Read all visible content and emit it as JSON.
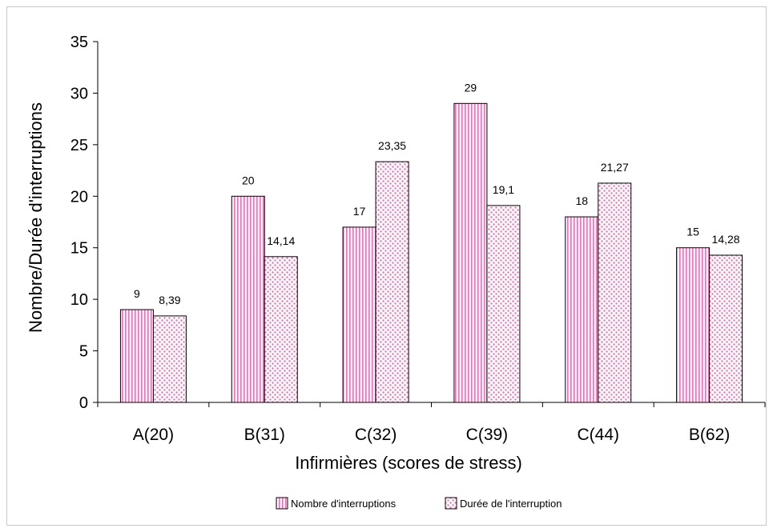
{
  "chart_data": {
    "type": "bar",
    "xlabel": "Infirmières (scores de stress)",
    "ylabel": "Nombre/Durée d'interruptions",
    "ylim": [
      0,
      35
    ],
    "yticks": [
      0,
      5,
      10,
      15,
      20,
      25,
      30,
      35
    ],
    "categories": [
      "A(20)",
      "B(31)",
      "C(32)",
      "C(39)",
      "C(44)",
      "B(62)"
    ],
    "series": [
      {
        "name": "Nombre d'interruptions",
        "values": [
          9,
          20,
          17,
          29,
          18,
          15
        ],
        "labels": [
          "9",
          "20",
          "17",
          "29",
          "18",
          "15"
        ],
        "pattern": "vertical-stripes"
      },
      {
        "name": "Durée de l'interruption",
        "values": [
          8.39,
          14.14,
          23.35,
          19.1,
          21.27,
          14.28
        ],
        "labels": [
          "8,39",
          "14,14",
          "23,35",
          "19,1",
          "21,27",
          "14,28"
        ],
        "pattern": "dots"
      }
    ],
    "legend_position": "bottom",
    "grid": false
  },
  "colors": {
    "pattern": "#ff66b3",
    "outline": "#000000"
  }
}
